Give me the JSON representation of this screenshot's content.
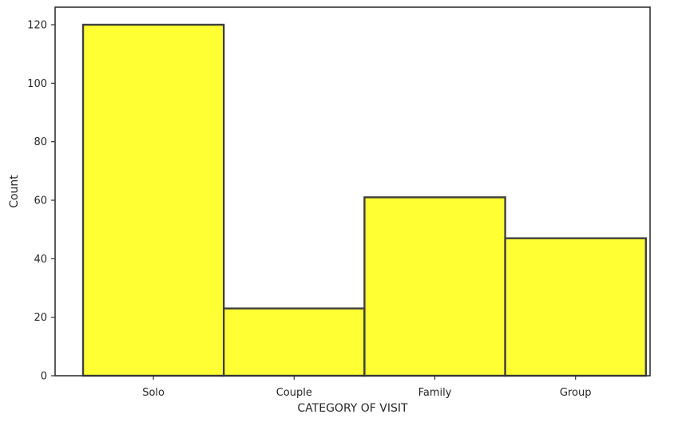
{
  "chart_data": {
    "type": "bar",
    "categories": [
      "Solo",
      "Couple",
      "Family",
      "Group"
    ],
    "values": [
      120,
      23,
      61,
      47
    ],
    "xlabel": "CATEGORY OF VISIT",
    "ylabel": "Count",
    "ylim": [
      0,
      126
    ],
    "yticks": [
      0,
      20,
      40,
      60,
      80,
      100,
      120
    ],
    "bar_color": "#ffff33",
    "edge_color": "#404040",
    "grid": false,
    "legend": "none"
  }
}
